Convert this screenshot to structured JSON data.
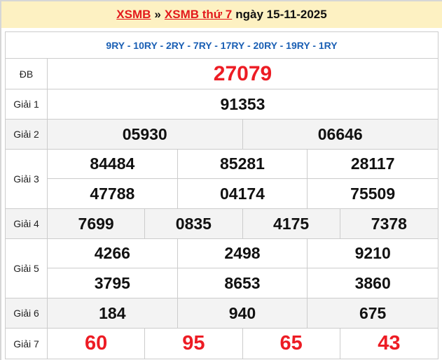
{
  "header": {
    "link1": "XSMB",
    "separator": "»",
    "link2": "XSMB thứ 7",
    "date": "ngày 15-11-2025"
  },
  "codes": "9RY - 10RY - 2RY - 7RY - 17RY - 20RY - 19RY - 1RY",
  "colors": {
    "header_bg": "#fdf1c2",
    "accent_red": "#ed1c24",
    "code_blue": "#1a5fb4"
  },
  "prizes": {
    "db": {
      "label": "ĐB",
      "values": [
        "27079"
      ]
    },
    "g1": {
      "label": "Giải 1",
      "values": [
        "91353"
      ]
    },
    "g2": {
      "label": "Giải 2",
      "values": [
        "05930",
        "06646"
      ]
    },
    "g3": {
      "label": "Giải 3",
      "values": [
        "84484",
        "85281",
        "28117",
        "47788",
        "04174",
        "75509"
      ]
    },
    "g4": {
      "label": "Giải 4",
      "values": [
        "7699",
        "0835",
        "4175",
        "7378"
      ]
    },
    "g5": {
      "label": "Giải 5",
      "values": [
        "4266",
        "2498",
        "9210",
        "3795",
        "8653",
        "3860"
      ]
    },
    "g6": {
      "label": "Giải 6",
      "values": [
        "184",
        "940",
        "675"
      ]
    },
    "g7": {
      "label": "Giải 7",
      "values": [
        "60",
        "95",
        "65",
        "43"
      ]
    }
  }
}
